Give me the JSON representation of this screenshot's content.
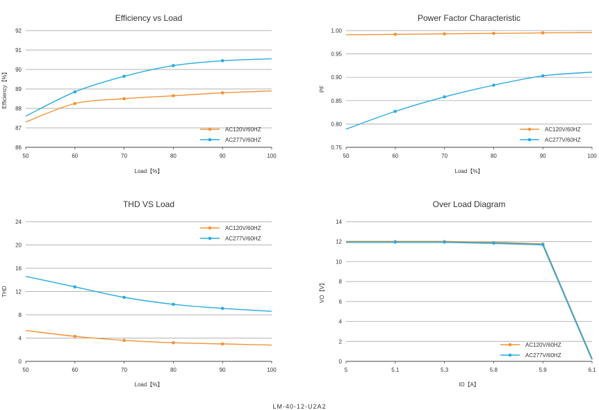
{
  "footer": "LM-40-12-U2A2",
  "colors": {
    "ac120": "#F39233",
    "ac277": "#27AAE1",
    "overlap": "#7DA08A"
  },
  "chart_data": [
    {
      "id": "efficiency",
      "type": "line",
      "title": "Efficiency vs Load",
      "xlabel": "Load【%】",
      "ylabel": "Efficiency【%】",
      "x": [
        50,
        60,
        70,
        80,
        90,
        100
      ],
      "xlim": [
        50,
        100
      ],
      "ylim": [
        86,
        92
      ],
      "yticks": [
        "86",
        "87",
        "88",
        "89",
        "90",
        "91",
        "92"
      ],
      "xticks": [
        "50",
        "60",
        "70",
        "80",
        "90",
        "100"
      ],
      "legend": "bottom-right",
      "grid": "horizontal",
      "series": [
        {
          "name": "AC120V/60HZ",
          "color": "#F39233",
          "values": [
            87.3,
            88.25,
            88.5,
            88.65,
            88.8,
            88.9
          ]
        },
        {
          "name": "AC277V/60HZ",
          "color": "#27AAE1",
          "values": [
            87.6,
            88.85,
            89.65,
            90.2,
            90.45,
            90.55
          ]
        }
      ]
    },
    {
      "id": "power-factor",
      "type": "line",
      "title": "Power Factor Characteristic",
      "xlabel": "Load【%】",
      "ylabel": "PF",
      "x": [
        50,
        60,
        70,
        80,
        90,
        100
      ],
      "xlim": [
        50,
        100
      ],
      "ylim": [
        0.75,
        1.0
      ],
      "yticks": [
        "0.75",
        "0.80",
        "0.85",
        "0.90",
        "0.95",
        "1.00"
      ],
      "xticks": [
        "50",
        "60",
        "70",
        "80",
        "90",
        "100"
      ],
      "legend": "bottom-right",
      "grid": "horizontal",
      "series": [
        {
          "name": "AC120V/60HZ",
          "color": "#F39233",
          "values": [
            0.991,
            0.992,
            0.993,
            0.994,
            0.995,
            0.996
          ]
        },
        {
          "name": "AC277V/60HZ",
          "color": "#27AAE1",
          "values": [
            0.789,
            0.827,
            0.858,
            0.883,
            0.903,
            0.911
          ]
        }
      ]
    },
    {
      "id": "thd",
      "type": "line",
      "title": "THD VS Load",
      "xlabel": "Load【%】",
      "ylabel": "THD",
      "x": [
        50,
        60,
        70,
        80,
        90,
        100
      ],
      "xlim": [
        50,
        100
      ],
      "ylim": [
        0,
        24
      ],
      "yticks": [
        "0",
        "4",
        "8",
        "12",
        "16",
        "20",
        "24"
      ],
      "xticks": [
        "50",
        "60",
        "70",
        "80",
        "90",
        "100"
      ],
      "legend": "top-right",
      "grid": "horizontal",
      "series": [
        {
          "name": "AC120V/60HZ",
          "color": "#F39233",
          "values": [
            5.3,
            4.3,
            3.6,
            3.2,
            3.0,
            2.8
          ]
        },
        {
          "name": "AC277V/60HZ",
          "color": "#27AAE1",
          "values": [
            14.6,
            12.8,
            11.0,
            9.8,
            9.1,
            8.6
          ]
        }
      ]
    },
    {
      "id": "over-load",
      "type": "line",
      "title": "Over Load Diagram",
      "xlabel": "IO【A】",
      "ylabel": "VO【V】",
      "categories": [
        "5",
        "5.1",
        "5.3",
        "5.8",
        "5.9",
        "6.1"
      ],
      "ylim": [
        0,
        14
      ],
      "yticks": [
        "0",
        "2",
        "4",
        "6",
        "8",
        "10",
        "12",
        "14"
      ],
      "xticks": [
        "5",
        "5.1",
        "5.3",
        "5.8",
        "5.9",
        "6.1"
      ],
      "legend": "bottom-center",
      "grid": "horizontal",
      "series": [
        {
          "name": "AC120V/60HZ",
          "color": "#F39233",
          "values": [
            12.0,
            12.0,
            12.0,
            11.9,
            11.75,
            0.2
          ]
        },
        {
          "name": "AC277V/60HZ",
          "color": "#27AAE1",
          "values": [
            11.95,
            11.95,
            11.95,
            11.85,
            11.7,
            0.2
          ]
        }
      ]
    }
  ]
}
